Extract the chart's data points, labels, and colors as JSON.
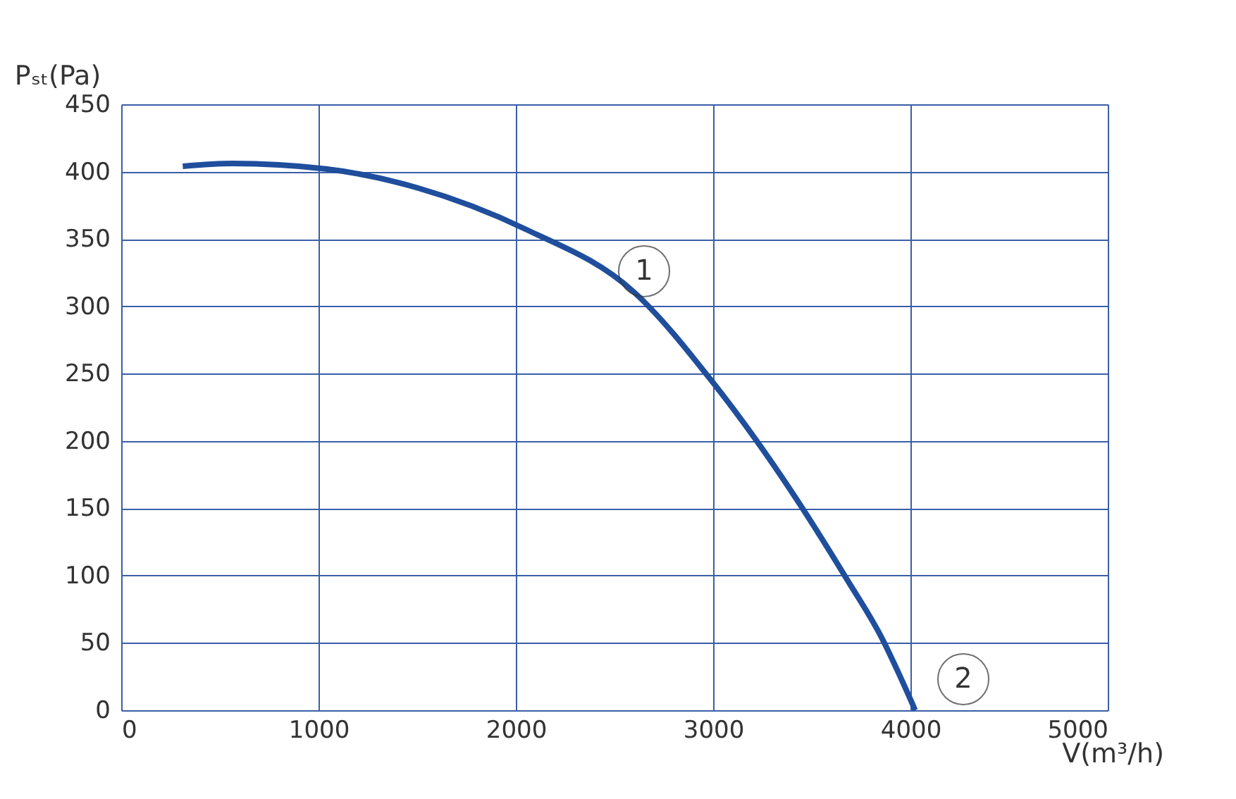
{
  "chart_data": {
    "type": "line",
    "xlabel": "V(m³/h)",
    "ylabel": "Pₛₜ(Pa)",
    "series": [
      {
        "color": "#1f4e9c",
        "x": [
          312,
          562,
          1037,
          1500,
          2053,
          2595,
          3001,
          3408,
          3679,
          3850,
          4024
        ],
        "values": [
          404,
          406,
          402,
          388,
          357,
          311,
          243,
          160,
          97,
          55,
          0
        ]
      }
    ],
    "xlim": [
      0,
      5000
    ],
    "xticks": [
      0,
      1000,
      2000,
      3000,
      4000,
      5000
    ],
    "ylim": [
      0,
      450
    ],
    "yticks": [
      0,
      50,
      100,
      150,
      200,
      250,
      300,
      350,
      400,
      450
    ],
    "grid": true,
    "marker": "none",
    "line_style": "solid",
    "annotations": [
      {
        "text": "1",
        "x": 2650,
        "y": 326
      },
      {
        "text": "2",
        "x": 4268,
        "y": 23
      }
    ]
  }
}
